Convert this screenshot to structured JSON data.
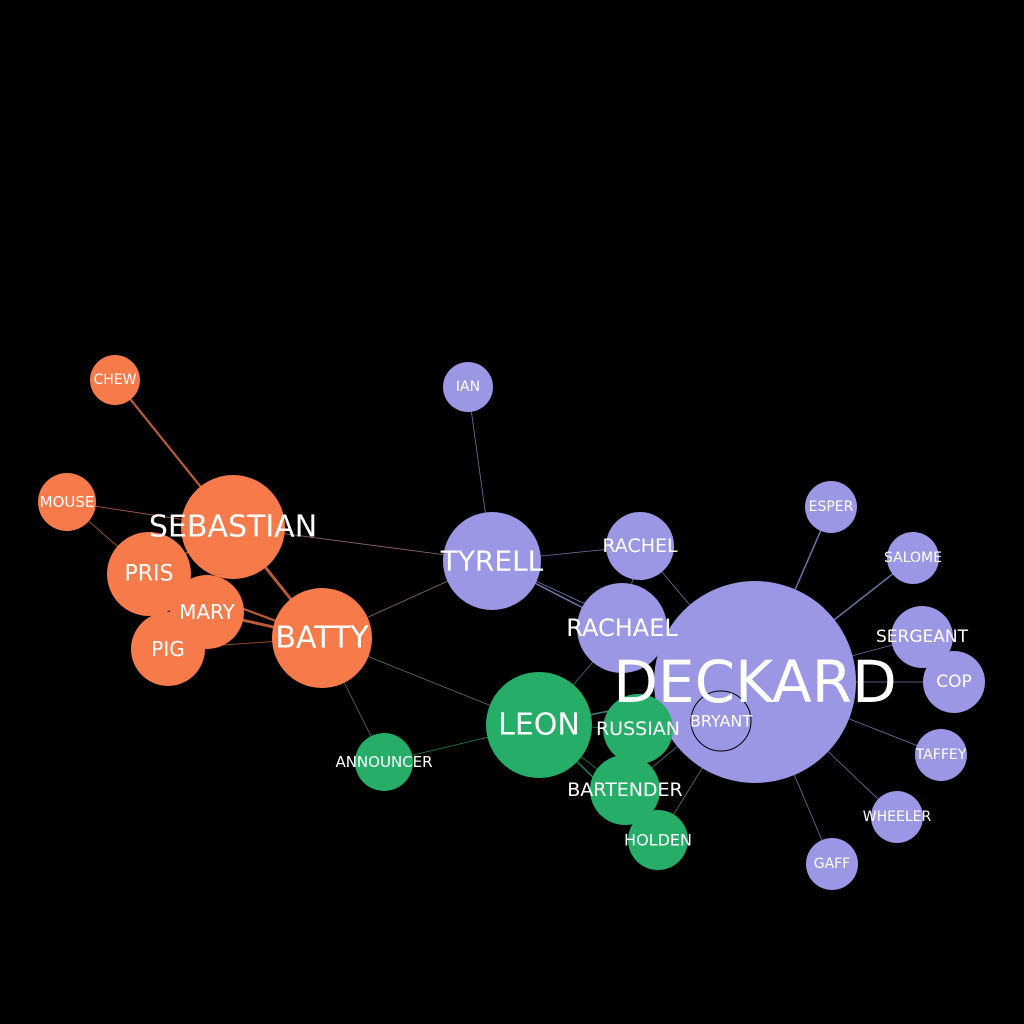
{
  "colors": {
    "background": "#000000",
    "orange": "#f77b4a",
    "purple": "#9b97e4",
    "green": "#26ae68",
    "label": "#ffffff"
  },
  "nodes": [
    {
      "id": "chew",
      "label": "CHEW",
      "group": "orange"
    },
    {
      "id": "mouse",
      "label": "MOUSE",
      "group": "orange"
    },
    {
      "id": "sebastian",
      "label": "SEBASTIAN",
      "group": "orange"
    },
    {
      "id": "pris",
      "label": "PRIS",
      "group": "orange"
    },
    {
      "id": "mary",
      "label": "MARY",
      "group": "orange"
    },
    {
      "id": "pig",
      "label": "PIG",
      "group": "orange"
    },
    {
      "id": "batty",
      "label": "BATTY",
      "group": "orange"
    },
    {
      "id": "ian",
      "label": "IAN",
      "group": "purple"
    },
    {
      "id": "tyrell",
      "label": "TYRELL",
      "group": "purple"
    },
    {
      "id": "rachel",
      "label": "RACHEL",
      "group": "purple"
    },
    {
      "id": "rachael",
      "label": "RACHAEL",
      "group": "purple"
    },
    {
      "id": "deckard",
      "label": "DECKARD",
      "group": "purple"
    },
    {
      "id": "bryant",
      "label": "BRYANT",
      "group": "purple"
    },
    {
      "id": "esper",
      "label": "ESPER",
      "group": "purple"
    },
    {
      "id": "salome",
      "label": "SALOME",
      "group": "purple"
    },
    {
      "id": "sergeant",
      "label": "SERGEANT",
      "group": "purple"
    },
    {
      "id": "cop",
      "label": "COP",
      "group": "purple"
    },
    {
      "id": "taffey",
      "label": "TAFFEY",
      "group": "purple"
    },
    {
      "id": "wheeler",
      "label": "WHEELER",
      "group": "purple"
    },
    {
      "id": "gaff",
      "label": "GAFF",
      "group": "purple"
    },
    {
      "id": "leon",
      "label": "LEON",
      "group": "green"
    },
    {
      "id": "russian",
      "label": "RUSSIAN",
      "group": "green"
    },
    {
      "id": "bartender",
      "label": "BARTENDER",
      "group": "green"
    },
    {
      "id": "holden",
      "label": "HOLDEN",
      "group": "green"
    },
    {
      "id": "announcer",
      "label": "ANNOUNCER",
      "group": "green"
    }
  ],
  "edges": [
    {
      "source": "chew",
      "target": "sebastian",
      "weight": 3
    },
    {
      "source": "mouse",
      "target": "sebastian",
      "weight": 1
    },
    {
      "source": "mouse",
      "target": "pris",
      "weight": 1
    },
    {
      "source": "sebastian",
      "target": "pris",
      "weight": 2
    },
    {
      "source": "sebastian",
      "target": "batty",
      "weight": 4
    },
    {
      "source": "sebastian",
      "target": "tyrell",
      "weight": 1
    },
    {
      "source": "pris",
      "target": "batty",
      "weight": 3
    },
    {
      "source": "mary",
      "target": "batty",
      "weight": 4
    },
    {
      "source": "pig",
      "target": "batty",
      "weight": 1
    },
    {
      "source": "mary",
      "target": "pris",
      "weight": 2
    },
    {
      "source": "batty",
      "target": "tyrell",
      "weight": 1
    },
    {
      "source": "batty",
      "target": "leon",
      "weight": 1
    },
    {
      "source": "batty",
      "target": "announcer",
      "weight": 1
    },
    {
      "source": "announcer",
      "target": "leon",
      "weight": 1
    },
    {
      "source": "ian",
      "target": "tyrell",
      "weight": 1
    },
    {
      "source": "tyrell",
      "target": "rachel",
      "weight": 1
    },
    {
      "source": "tyrell",
      "target": "rachael",
      "weight": 2
    },
    {
      "source": "tyrell",
      "target": "deckard",
      "weight": 1
    },
    {
      "source": "rachel",
      "target": "deckard",
      "weight": 1
    },
    {
      "source": "rachel",
      "target": "rachael",
      "weight": 1
    },
    {
      "source": "rachael",
      "target": "deckard",
      "weight": 3
    },
    {
      "source": "rachael",
      "target": "leon",
      "weight": 1
    },
    {
      "source": "leon",
      "target": "russian",
      "weight": 1
    },
    {
      "source": "leon",
      "target": "bartender",
      "weight": 1
    },
    {
      "source": "leon",
      "target": "holden",
      "weight": 2
    },
    {
      "source": "leon",
      "target": "deckard",
      "weight": 2
    },
    {
      "source": "russian",
      "target": "deckard",
      "weight": 1
    },
    {
      "source": "bartender",
      "target": "deckard",
      "weight": 1
    },
    {
      "source": "holden",
      "target": "deckard",
      "weight": 1
    },
    {
      "source": "deckard",
      "target": "bryant",
      "weight": 1
    },
    {
      "source": "deckard",
      "target": "esper",
      "weight": 2
    },
    {
      "source": "deckard",
      "target": "salome",
      "weight": 2
    },
    {
      "source": "deckard",
      "target": "sergeant",
      "weight": 1
    },
    {
      "source": "deckard",
      "target": "cop",
      "weight": 1
    },
    {
      "source": "deckard",
      "target": "taffey",
      "weight": 1
    },
    {
      "source": "deckard",
      "target": "wheeler",
      "weight": 1
    },
    {
      "source": "deckard",
      "target": "gaff",
      "weight": 1
    }
  ]
}
